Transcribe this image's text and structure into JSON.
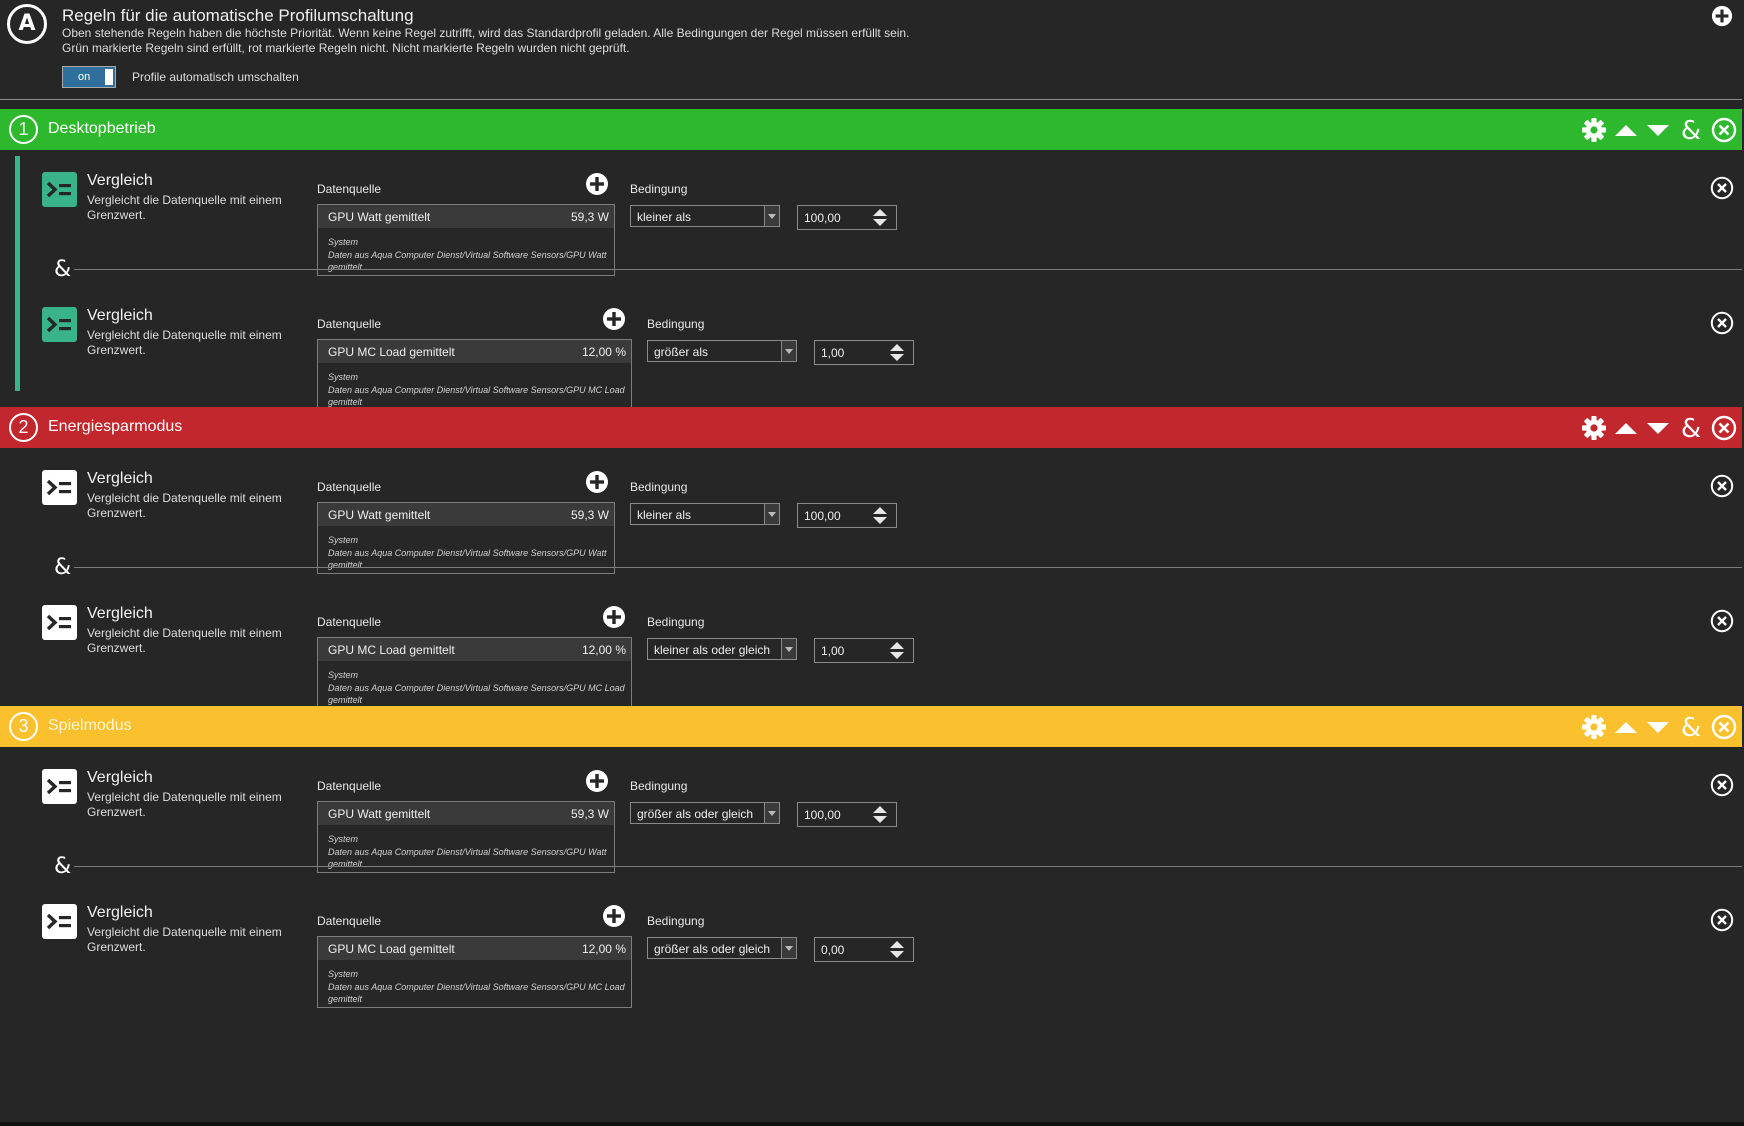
{
  "header": {
    "logo_letter": "A",
    "title": "Regeln für die automatische Profilumschaltung",
    "description_line1": "Oben stehende Regeln haben die höchste Priorität. Wenn keine Regel zutrifft, wird das Standardprofil geladen. Alle Bedingungen der Regel müssen erfüllt sein.",
    "description_line2": "Grün markierte Regeln sind erfüllt, rot markierte Regeln nicht. Nicht markierte Regeln wurden nicht geprüft.",
    "toggle_value": "on",
    "toggle_label": "Profile automatisch umschalten"
  },
  "colors": {
    "rule_fulfilled": "#2db82e",
    "rule_not_fulfilled": "#c1272d",
    "rule_unchecked": "#fbc02d",
    "condition_icon_active": "#39b389",
    "condition_icon_inactive": "#ffffff",
    "bracket": "#39b389"
  },
  "labels": {
    "datasource": "Datenquelle",
    "condition": "Bedingung",
    "and_symbol": "&"
  },
  "rules": [
    {
      "number": "1",
      "name": "Desktopbetrieb",
      "status": "fulfilled",
      "conditions": [
        {
          "title": "Vergleich",
          "description": "Vergleicht die Datenquelle mit einem Grenzwert.",
          "source_name": "GPU Watt gemittelt",
          "source_value": "59,3 W",
          "source_group": "System",
          "source_path": "Daten aus Aqua Computer Dienst/Virtual Software Sensors/GPU Watt gemittelt",
          "operator": "kleiner als",
          "threshold": "100,00"
        },
        {
          "title": "Vergleich",
          "description": "Vergleicht die Datenquelle mit einem Grenzwert.",
          "source_name": "GPU MC Load gemittelt",
          "source_value": "12,00 %",
          "source_group": "System",
          "source_path": "Daten aus Aqua Computer Dienst/Virtual Software Sensors/GPU MC Load gemittelt",
          "operator": "größer als",
          "threshold": "1,00"
        }
      ]
    },
    {
      "number": "2",
      "name": "Energiesparmodus",
      "status": "not_fulfilled",
      "conditions": [
        {
          "title": "Vergleich",
          "description": "Vergleicht die Datenquelle mit einem Grenzwert.",
          "source_name": "GPU Watt gemittelt",
          "source_value": "59,3 W",
          "source_group": "System",
          "source_path": "Daten aus Aqua Computer Dienst/Virtual Software Sensors/GPU Watt gemittelt",
          "operator": "kleiner als",
          "threshold": "100,00"
        },
        {
          "title": "Vergleich",
          "description": "Vergleicht die Datenquelle mit einem Grenzwert.",
          "source_name": "GPU MC Load gemittelt",
          "source_value": "12,00 %",
          "source_group": "System",
          "source_path": "Daten aus Aqua Computer Dienst/Virtual Software Sensors/GPU MC Load gemittelt",
          "operator": "kleiner als oder gleich",
          "threshold": "1,00"
        }
      ]
    },
    {
      "number": "3",
      "name": "Spielmodus",
      "status": "unchecked",
      "conditions": [
        {
          "title": "Vergleich",
          "description": "Vergleicht die Datenquelle mit einem Grenzwert.",
          "source_name": "GPU Watt gemittelt",
          "source_value": "59,3 W",
          "source_group": "System",
          "source_path": "Daten aus Aqua Computer Dienst/Virtual Software Sensors/GPU Watt gemittelt",
          "operator": "größer als oder gleich",
          "threshold": "100,00"
        },
        {
          "title": "Vergleich",
          "description": "Vergleicht die Datenquelle mit einem Grenzwert.",
          "source_name": "GPU MC Load gemittelt",
          "source_value": "12,00 %",
          "source_group": "System",
          "source_path": "Daten aus Aqua Computer Dienst/Virtual Software Sensors/GPU MC Load gemittelt",
          "operator": "größer als oder gleich",
          "threshold": "0,00"
        }
      ]
    }
  ],
  "icons": {
    "header_add": "plus-circle-icon",
    "rule_settings": "gear-icon",
    "rule_up": "arrow-up-icon",
    "rule_down": "arrow-down-icon",
    "rule_add_condition": "ampersand-icon",
    "rule_delete": "close-circle-icon",
    "condition_type": "greater-equal-icon",
    "datasource_add": "plus-circle-icon",
    "condition_delete": "close-circle-icon"
  }
}
